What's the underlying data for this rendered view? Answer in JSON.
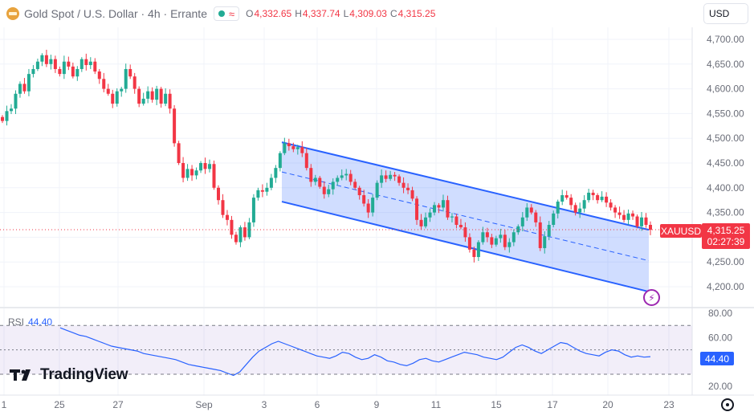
{
  "header": {
    "symbol": "Gold Spot / U.S. Dollar · 4h · Errante",
    "ohlc": {
      "o_label": "O",
      "o": "4,332.65",
      "h_label": "H",
      "h": "4,337.74",
      "l_label": "L",
      "l": "4,309.03",
      "c_label": "C",
      "c": "4,315.25"
    },
    "currency": "USD",
    "icon": "gold-coin-icon",
    "status_icons": [
      "market-open-dot-icon",
      "waves-icon"
    ]
  },
  "price_tag": {
    "ticker": "XAUUSD",
    "price": "4,315.25",
    "countdown": "02:27:39",
    "color": "#f23645"
  },
  "rsi_tag": "44.40",
  "rsi_legend": {
    "name": "RSI",
    "value": "44.40"
  },
  "branding": {
    "name": "TradingView",
    "icon": "tradingview-logo-icon"
  },
  "colors": {
    "up": "#22ab94",
    "down": "#f23645",
    "channel": "#2962ff",
    "rsi": "#2962ff"
  },
  "chart_data": [
    {
      "type": "candlestick",
      "title": "Gold Spot / U.S. Dollar · 4h · Errante",
      "ylim": [
        4175,
        4725
      ],
      "y_ticks": [
        "4,200.00",
        "4,250.00",
        "4,300.00",
        "4,350.00",
        "4,400.00",
        "4,450.00",
        "4,500.00",
        "4,550.00",
        "4,600.00",
        "4,650.00",
        "4,700.00"
      ],
      "x_ticks": [
        "1",
        "25",
        "27",
        "Sep",
        "3",
        "6",
        "9",
        "11",
        "15",
        "17",
        "20",
        "23"
      ],
      "current_price": 4315.25,
      "closes": [
        4535,
        4555,
        4560,
        4590,
        4610,
        4595,
        4630,
        4640,
        4655,
        4668,
        4650,
        4660,
        4640,
        4630,
        4655,
        4645,
        4625,
        4640,
        4660,
        4648,
        4655,
        4635,
        4620,
        4600,
        4590,
        4570,
        4595,
        4600,
        4640,
        4625,
        4600,
        4570,
        4580,
        4595,
        4578,
        4600,
        4570,
        4590,
        4560,
        4490,
        4450,
        4420,
        4438,
        4425,
        4435,
        4450,
        4438,
        4448,
        4400,
        4375,
        4345,
        4335,
        4305,
        4290,
        4320,
        4300,
        4330,
        4380,
        4395,
        4392,
        4400,
        4420,
        4440,
        4470,
        4490,
        4484,
        4478,
        4482,
        4470,
        4440,
        4412,
        4420,
        4402,
        4387,
        4397,
        4412,
        4420,
        4425,
        4428,
        4412,
        4400,
        4385,
        4368,
        4350,
        4380,
        4410,
        4425,
        4418,
        4426,
        4423,
        4410,
        4400,
        4395,
        4378,
        4335,
        4322,
        4340,
        4350,
        4365,
        4360,
        4375,
        4340,
        4342,
        4325,
        4320,
        4300,
        4275,
        4260,
        4290,
        4310,
        4300,
        4285,
        4298,
        4305,
        4280,
        4290,
        4310,
        4322,
        4340,
        4360,
        4350,
        4330,
        4278,
        4302,
        4325,
        4348,
        4372,
        4385,
        4380,
        4365,
        4350,
        4358,
        4375,
        4390,
        4385,
        4375,
        4382,
        4370,
        4360,
        4350,
        4345,
        4335,
        4348,
        4342,
        4322,
        4340,
        4325,
        4315
      ],
      "channel": {
        "upper": [
          [
            4492,
            4345
          ],
          [
            4315,
            4320
          ]
        ],
        "lower": [
          [
            4372,
            4345
          ],
          [
            4190,
            4320
          ]
        ]
      }
    },
    {
      "type": "line",
      "title": "RSI",
      "ylim": [
        15,
        85
      ],
      "y_ticks": [
        "20.00",
        "40.00",
        "60.00",
        "80.00"
      ],
      "levels": [
        70,
        50,
        30
      ],
      "current_value": 44.4,
      "values": [
        68,
        66,
        64,
        62,
        61,
        59,
        57,
        55,
        53,
        52,
        51,
        50,
        49,
        47,
        46,
        45,
        44,
        43,
        42,
        40,
        38,
        37,
        36,
        35,
        34,
        33,
        31,
        29,
        32,
        38,
        44,
        49,
        52,
        55,
        57,
        55,
        53,
        51,
        49,
        47,
        45,
        44,
        43,
        45,
        48,
        47,
        44,
        42,
        43,
        46,
        44,
        41,
        40,
        38,
        37,
        39,
        42,
        43,
        41,
        40,
        42,
        44,
        46,
        48,
        47,
        46,
        44,
        43,
        42,
        44,
        48,
        52,
        54,
        52,
        49,
        47,
        50,
        53,
        56,
        55,
        52,
        49,
        47,
        46,
        45,
        48,
        50,
        49,
        46,
        44,
        45,
        44,
        44.4
      ]
    }
  ]
}
